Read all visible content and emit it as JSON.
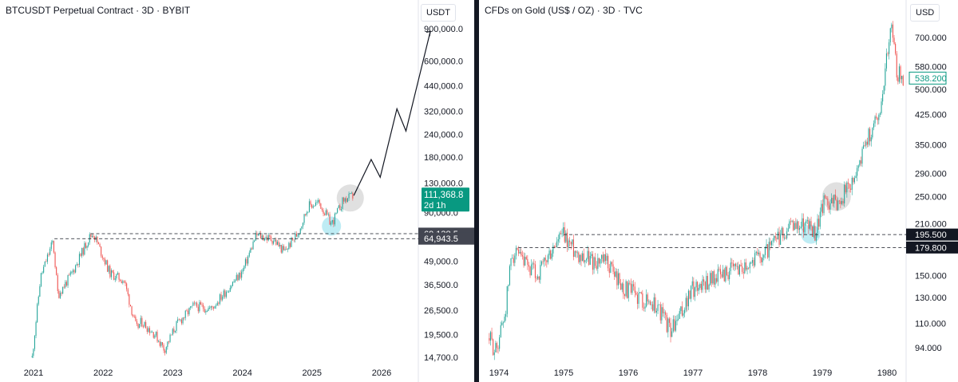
{
  "chart_data": [
    {
      "type": "line",
      "title": "BTCUSDT Perpetual Contract · 3D · BYBIT",
      "currency": "USDT",
      "scale": "log",
      "x_ticks": [
        "2021",
        "2022",
        "2023",
        "2024",
        "2025",
        "2026"
      ],
      "y_ticks": [
        "900,000.0",
        "600,000.0",
        "440,000.0",
        "320,000.0",
        "240,000.0",
        "180,000.0",
        "130,000.0",
        "90,000.0",
        "49,000.0",
        "36,500.0",
        "26,500.0",
        "19,500.0",
        "14,700.0"
      ],
      "x": [
        2020.98,
        2021.1,
        2021.28,
        2021.35,
        2021.55,
        2021.8,
        2021.86,
        2022.1,
        2022.3,
        2022.48,
        2022.55,
        2022.75,
        2022.88,
        2023.05,
        2023.3,
        2023.55,
        2023.8,
        2024.0,
        2024.2,
        2024.45,
        2024.6,
        2024.8,
        2024.95,
        2025.1,
        2025.28,
        2025.45,
        2025.6
      ],
      "values": [
        14700,
        40000,
        63000,
        32000,
        42000,
        66000,
        69138,
        42000,
        38500,
        21000,
        23000,
        19500,
        16200,
        22000,
        28000,
        27000,
        35000,
        43000,
        68000,
        64000,
        55000,
        70000,
        98000,
        102000,
        78000,
        105000,
        111368
      ],
      "projection": {
        "x": [
          2025.6,
          2025.85,
          2025.98,
          2026.22,
          2026.35,
          2026.7
        ],
        "values": [
          111368,
          175000,
          140000,
          330000,
          250000,
          870000
        ]
      },
      "last_price": "111,368.8",
      "countdown": "2d 1h",
      "levels": [
        {
          "value": 69138.5,
          "label": "69,138.5"
        },
        {
          "value": 64943.5,
          "label": "64,943.5"
        }
      ],
      "highlights": [
        {
          "x": 2025.28,
          "value": 76000,
          "color": "#a8e6f0"
        },
        {
          "x": 2025.55,
          "value": 108000,
          "color": "#d6d6d6"
        }
      ],
      "colors": {
        "up": "#26a69a",
        "down": "#ef5350",
        "last": "#089981",
        "level_box": "#434651"
      }
    },
    {
      "type": "line",
      "title": "CFDs on Gold (US$ / OZ) · 3D · TVC",
      "currency": "USD",
      "scale": "log",
      "x_ticks": [
        "1974",
        "1975",
        "1976",
        "1977",
        "1978",
        "1979",
        "1980"
      ],
      "y_ticks": [
        "700.000",
        "580.000",
        "500.000",
        "425.000",
        "350.000",
        "290.000",
        "250.000",
        "210.000",
        "150.000",
        "130.000",
        "110.000",
        "94.000"
      ],
      "x": [
        1973.85,
        1973.95,
        1974.1,
        1974.2,
        1974.4,
        1974.6,
        1974.9,
        1974.98,
        1975.2,
        1975.45,
        1975.7,
        1975.9,
        1976.2,
        1976.45,
        1976.66,
        1976.8,
        1977.0,
        1977.3,
        1977.6,
        1977.9,
        1978.2,
        1978.5,
        1978.75,
        1978.88,
        1979.05,
        1979.2,
        1979.45,
        1979.7,
        1979.9,
        1980.0,
        1980.07,
        1980.15,
        1980.25
      ],
      "values": [
        100,
        92,
        120,
        175,
        160,
        150,
        186,
        195,
        175,
        165,
        162,
        140,
        130,
        123,
        105,
        115,
        138,
        148,
        155,
        165,
        180,
        205,
        212,
        198,
        245,
        240,
        270,
        365,
        440,
        640,
        760,
        570,
        520
      ],
      "last_price": "538.200",
      "levels": [
        {
          "value": 195.5,
          "label": "195.500"
        },
        {
          "value": 179.8,
          "label": "179.800"
        }
      ],
      "highlights": [
        {
          "x": 1978.82,
          "value": 196,
          "color": "#a8e6f0"
        },
        {
          "x": 1979.22,
          "value": 250,
          "color": "#d6d6d6"
        }
      ],
      "colors": {
        "up": "#26a69a",
        "down": "#ef5350",
        "last": "#089981",
        "level_box": "#131722"
      }
    }
  ]
}
